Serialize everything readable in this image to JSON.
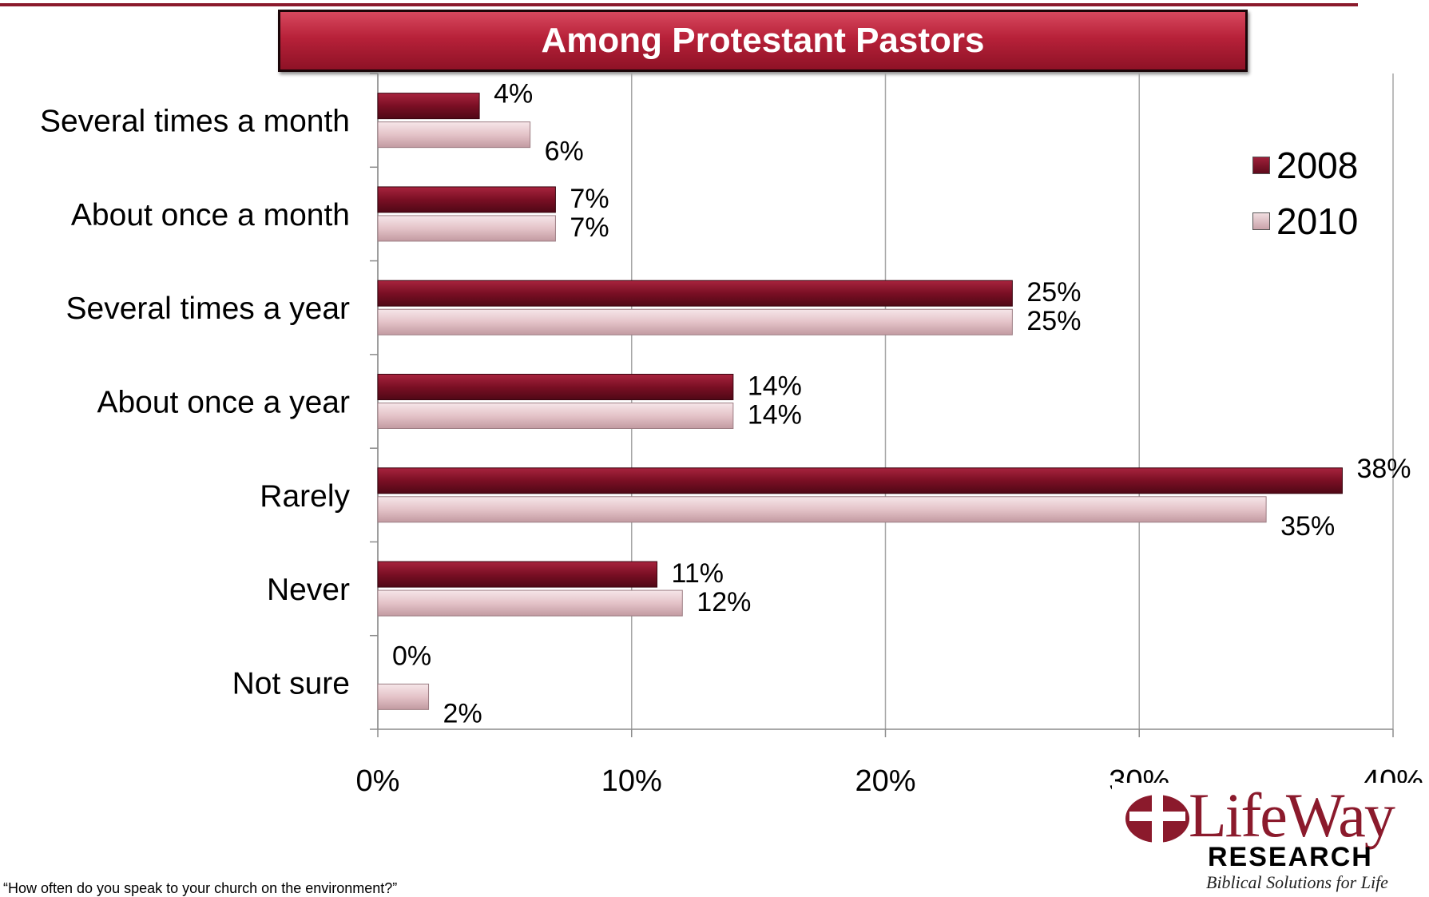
{
  "chart_data": {
    "type": "bar",
    "orientation": "horizontal",
    "title": "Among Protestant Pastors",
    "categories": [
      "Several times a month",
      "About once a month",
      "Several times a year",
      "About once a year",
      "Rarely",
      "Never",
      "Not sure"
    ],
    "series": [
      {
        "name": "2008",
        "values": [
          4,
          7,
          25,
          14,
          38,
          11,
          0
        ],
        "labels": [
          "4%",
          "7%",
          "25%",
          "14%",
          "38%",
          "11%",
          "0%"
        ],
        "color": "#7a0f24"
      },
      {
        "name": "2010",
        "values": [
          6,
          7,
          25,
          14,
          35,
          12,
          2
        ],
        "labels": [
          "6%",
          "7%",
          "25%",
          "14%",
          "35%",
          "12%",
          "2%"
        ],
        "color": "#e4c3c8"
      }
    ],
    "xlim": [
      0,
      40
    ],
    "xticks": [
      0,
      10,
      20,
      30,
      40
    ],
    "xtick_labels": [
      "0%",
      "10%",
      "20%",
      "30%",
      "40%"
    ],
    "grid": true,
    "legend_position": "right"
  },
  "footnote": "“How often do you speak to your church on the environment?”",
  "logo": {
    "wordmark": "LifeWay",
    "subtitle": "RESEARCH",
    "tagline": "Biblical Solutions for Life"
  },
  "colors": {
    "accent": "#8b1a2c",
    "series_2008": "#7a0f24",
    "series_2010": "#e4c3c8"
  }
}
